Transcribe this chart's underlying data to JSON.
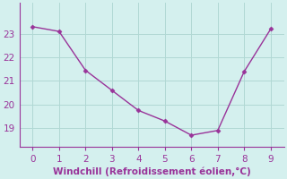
{
  "x": [
    0,
    1,
    2,
    3,
    4,
    5,
    6,
    7,
    8,
    9
  ],
  "y": [
    23.3,
    23.1,
    21.45,
    20.6,
    19.75,
    19.3,
    18.7,
    18.9,
    21.4,
    23.2
  ],
  "line_color": "#993399",
  "marker": "D",
  "marker_size": 2.5,
  "line_width": 1.0,
  "background_color": "#d4f0ee",
  "grid_color": "#b0d8d4",
  "xlabel": "Windchill (Refroidissement éolien,°C)",
  "xlabel_color": "#993399",
  "xlabel_fontsize": 7.5,
  "xlim": [
    -0.5,
    9.5
  ],
  "ylim": [
    18.2,
    24.3
  ],
  "xticks": [
    0,
    1,
    2,
    3,
    4,
    5,
    6,
    7,
    8,
    9
  ],
  "yticks": [
    19,
    20,
    21,
    22,
    23
  ],
  "tick_fontsize": 7.5,
  "tick_color": "#993399",
  "spine_color": "#993399"
}
